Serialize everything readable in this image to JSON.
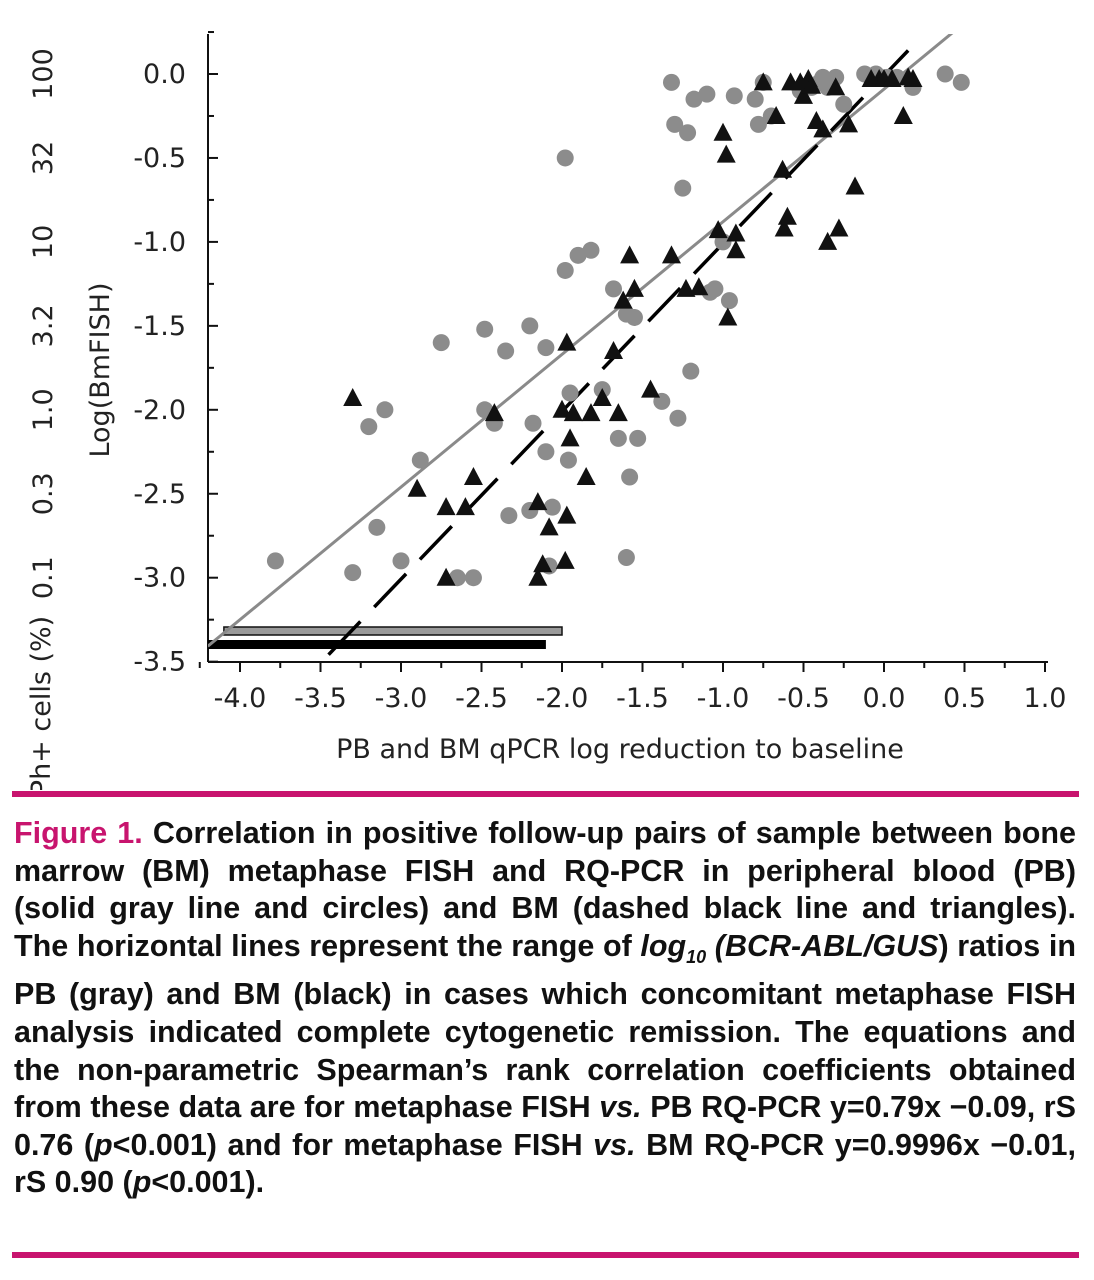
{
  "chart_data": {
    "type": "scatter",
    "xlabel": "PB and BM qPCR log reduction to baseline",
    "ylabel": "Log(BmFISH)",
    "secondary_ylabel": "Ph+ cells (%)",
    "xlim": [
      -4.2,
      1.0
    ],
    "ylim": [
      -3.5,
      0.25
    ],
    "x_ticks": [
      "-4.0",
      "-3.5",
      "-3.0",
      "-2.5",
      "-2.0",
      "-1.5",
      "-1.0",
      "-0.5",
      "0.0",
      "0.5",
      "1.0"
    ],
    "x_tick_values": [
      -4.0,
      -3.5,
      -3.0,
      -2.5,
      -2.0,
      -1.5,
      -1.0,
      -0.5,
      0.0,
      0.5,
      1.0
    ],
    "y_ticks": [
      "0.0",
      "-0.5",
      "-1.0",
      "-1.5",
      "-2.0",
      "-2.5",
      "-3.0",
      "-3.5"
    ],
    "y_tick_values": [
      0.0,
      -0.5,
      -1.0,
      -1.5,
      -2.0,
      -2.5,
      -3.0,
      -3.5
    ],
    "secondary_y_ticks": [
      "100",
      "32",
      "10",
      "3.2",
      "1.0",
      "0.3",
      "0.1"
    ],
    "secondary_y_tick_values": [
      0.0,
      -0.5,
      -1.0,
      -1.5,
      -2.0,
      -2.5,
      -3.0
    ],
    "series": [
      {
        "name": "PB",
        "marker": "circle",
        "color": "#8c8c8c",
        "points": [
          [
            -3.78,
            -2.9
          ],
          [
            -3.3,
            -2.97
          ],
          [
            -3.2,
            -2.1
          ],
          [
            -3.1,
            -2.0
          ],
          [
            -3.15,
            -2.7
          ],
          [
            -3.0,
            -2.9
          ],
          [
            -2.88,
            -2.3
          ],
          [
            -2.75,
            -1.6
          ],
          [
            -2.65,
            -3.0
          ],
          [
            -2.55,
            -3.0
          ],
          [
            -2.48,
            -1.52
          ],
          [
            -2.48,
            -2.0
          ],
          [
            -2.42,
            -2.08
          ],
          [
            -2.35,
            -1.65
          ],
          [
            -2.33,
            -2.63
          ],
          [
            -2.2,
            -2.6
          ],
          [
            -2.2,
            -1.5
          ],
          [
            -2.18,
            -2.08
          ],
          [
            -2.1,
            -1.63
          ],
          [
            -2.1,
            -2.25
          ],
          [
            -2.08,
            -2.93
          ],
          [
            -2.06,
            -2.58
          ],
          [
            -1.98,
            -1.17
          ],
          [
            -1.98,
            -0.5
          ],
          [
            -1.96,
            -2.3
          ],
          [
            -1.95,
            -1.9
          ],
          [
            -1.9,
            -1.08
          ],
          [
            -1.82,
            -1.05
          ],
          [
            -1.75,
            -1.88
          ],
          [
            -1.68,
            -1.28
          ],
          [
            -1.65,
            -2.17
          ],
          [
            -1.6,
            -1.43
          ],
          [
            -1.6,
            -2.88
          ],
          [
            -1.58,
            -2.4
          ],
          [
            -1.55,
            -1.45
          ],
          [
            -1.53,
            -2.17
          ],
          [
            -1.38,
            -1.95
          ],
          [
            -1.32,
            -0.05
          ],
          [
            -1.3,
            -0.3
          ],
          [
            -1.28,
            -2.05
          ],
          [
            -1.25,
            -0.68
          ],
          [
            -1.22,
            -0.35
          ],
          [
            -1.2,
            -1.77
          ],
          [
            -1.18,
            -0.15
          ],
          [
            -1.1,
            -0.12
          ],
          [
            -1.08,
            -1.3
          ],
          [
            -1.05,
            -1.28
          ],
          [
            -1.0,
            -1.0
          ],
          [
            -0.96,
            -1.35
          ],
          [
            -0.93,
            -0.13
          ],
          [
            -0.8,
            -0.15
          ],
          [
            -0.78,
            -0.3
          ],
          [
            -0.75,
            -0.05
          ],
          [
            -0.7,
            -0.25
          ],
          [
            -0.52,
            -0.1
          ],
          [
            -0.45,
            -0.08
          ],
          [
            -0.4,
            -0.05
          ],
          [
            -0.38,
            -0.02
          ],
          [
            -0.35,
            -0.08
          ],
          [
            -0.3,
            -0.02
          ],
          [
            -0.25,
            -0.18
          ],
          [
            -0.12,
            0.0
          ],
          [
            -0.05,
            0.0
          ],
          [
            0.02,
            -0.02
          ],
          [
            0.08,
            -0.02
          ],
          [
            0.18,
            -0.08
          ],
          [
            0.38,
            0.0
          ],
          [
            0.48,
            -0.05
          ]
        ],
        "fit_equation": "y=0.79x -0.09",
        "fit": {
          "slope": 0.79,
          "intercept": -0.09
        },
        "fit_style": "solid gray",
        "spearman_rs": 0.76,
        "range_bar": [
          -4.1,
          -2.0
        ]
      },
      {
        "name": "BM",
        "marker": "triangle",
        "color": "#111111",
        "points": [
          [
            -3.3,
            -1.93
          ],
          [
            -2.9,
            -2.47
          ],
          [
            -2.72,
            -2.58
          ],
          [
            -2.72,
            -3.0
          ],
          [
            -2.6,
            -2.58
          ],
          [
            -2.55,
            -2.4
          ],
          [
            -2.42,
            -2.02
          ],
          [
            -2.15,
            -2.55
          ],
          [
            -2.15,
            -3.0
          ],
          [
            -2.12,
            -2.92
          ],
          [
            -2.08,
            -2.7
          ],
          [
            -2.0,
            -2.0
          ],
          [
            -1.98,
            -2.9
          ],
          [
            -1.97,
            -1.6
          ],
          [
            -1.97,
            -2.63
          ],
          [
            -1.95,
            -2.17
          ],
          [
            -1.93,
            -2.02
          ],
          [
            -1.85,
            -2.4
          ],
          [
            -1.82,
            -2.02
          ],
          [
            -1.75,
            -1.93
          ],
          [
            -1.68,
            -1.65
          ],
          [
            -1.65,
            -2.02
          ],
          [
            -1.62,
            -1.35
          ],
          [
            -1.58,
            -1.08
          ],
          [
            -1.55,
            -1.28
          ],
          [
            -1.45,
            -1.88
          ],
          [
            -1.32,
            -1.08
          ],
          [
            -1.23,
            -1.28
          ],
          [
            -1.15,
            -1.27
          ],
          [
            -1.03,
            -0.93
          ],
          [
            -1.0,
            -0.35
          ],
          [
            -0.98,
            -0.48
          ],
          [
            -0.97,
            -1.45
          ],
          [
            -0.92,
            -1.05
          ],
          [
            -0.92,
            -0.95
          ],
          [
            -0.75,
            -0.05
          ],
          [
            -0.67,
            -0.25
          ],
          [
            -0.63,
            -0.57
          ],
          [
            -0.62,
            -0.92
          ],
          [
            -0.6,
            -0.85
          ],
          [
            -0.58,
            -0.05
          ],
          [
            -0.52,
            -0.05
          ],
          [
            -0.5,
            -0.13
          ],
          [
            -0.47,
            -0.03
          ],
          [
            -0.45,
            -0.07
          ],
          [
            -0.42,
            -0.28
          ],
          [
            -0.38,
            -0.33
          ],
          [
            -0.35,
            -1.0
          ],
          [
            -0.3,
            -0.08
          ],
          [
            -0.28,
            -0.92
          ],
          [
            -0.22,
            -0.3
          ],
          [
            -0.18,
            -0.67
          ],
          [
            -0.08,
            -0.03
          ],
          [
            -0.03,
            -0.03
          ],
          [
            0.0,
            -0.03
          ],
          [
            0.05,
            -0.03
          ],
          [
            0.12,
            -0.25
          ],
          [
            0.15,
            -0.02
          ],
          [
            0.18,
            -0.03
          ]
        ],
        "fit_equation": "y=0.9996x -0.01",
        "fit": {
          "slope": 0.9996,
          "intercept": -0.01
        },
        "fit_style": "dashed black",
        "spearman_rs": 0.9,
        "range_bar": [
          -4.2,
          -2.1
        ]
      }
    ]
  },
  "caption": {
    "label": "Figure 1.",
    "t1": "Correlation in positive follow-up pairs of sample between bone marrow (BM) metaphase FISH and RQ-PCR in peripheral blood (PB) (solid gray line and circles) and BM (dashed black line and triangles). The horizontal lines represent the range of",
    "log": "log",
    "log_sub": "10",
    "bcr": "(BCR-ABL/GUS",
    "t2": ") ratios in PB (gray) and BM (black) in cases which concomitant metaphase FISH analysis indicated complete cytogenetic remission. The equations and the non-parametric Spearman’s rank correlation coefficients obtained from these data are for metaphase FISH",
    "vs1": "vs.",
    "t3": "PB RQ-PCR y=0.79x −0.09, rS 0.76 (",
    "p1": "p",
    "t4": "<0.001) and for metaphase FISH",
    "vs2": "vs.",
    "t5": "BM RQ-PCR y=0.9996x −0.01, rS 0.90 (",
    "p2": "p",
    "t6": "<0.001)."
  }
}
